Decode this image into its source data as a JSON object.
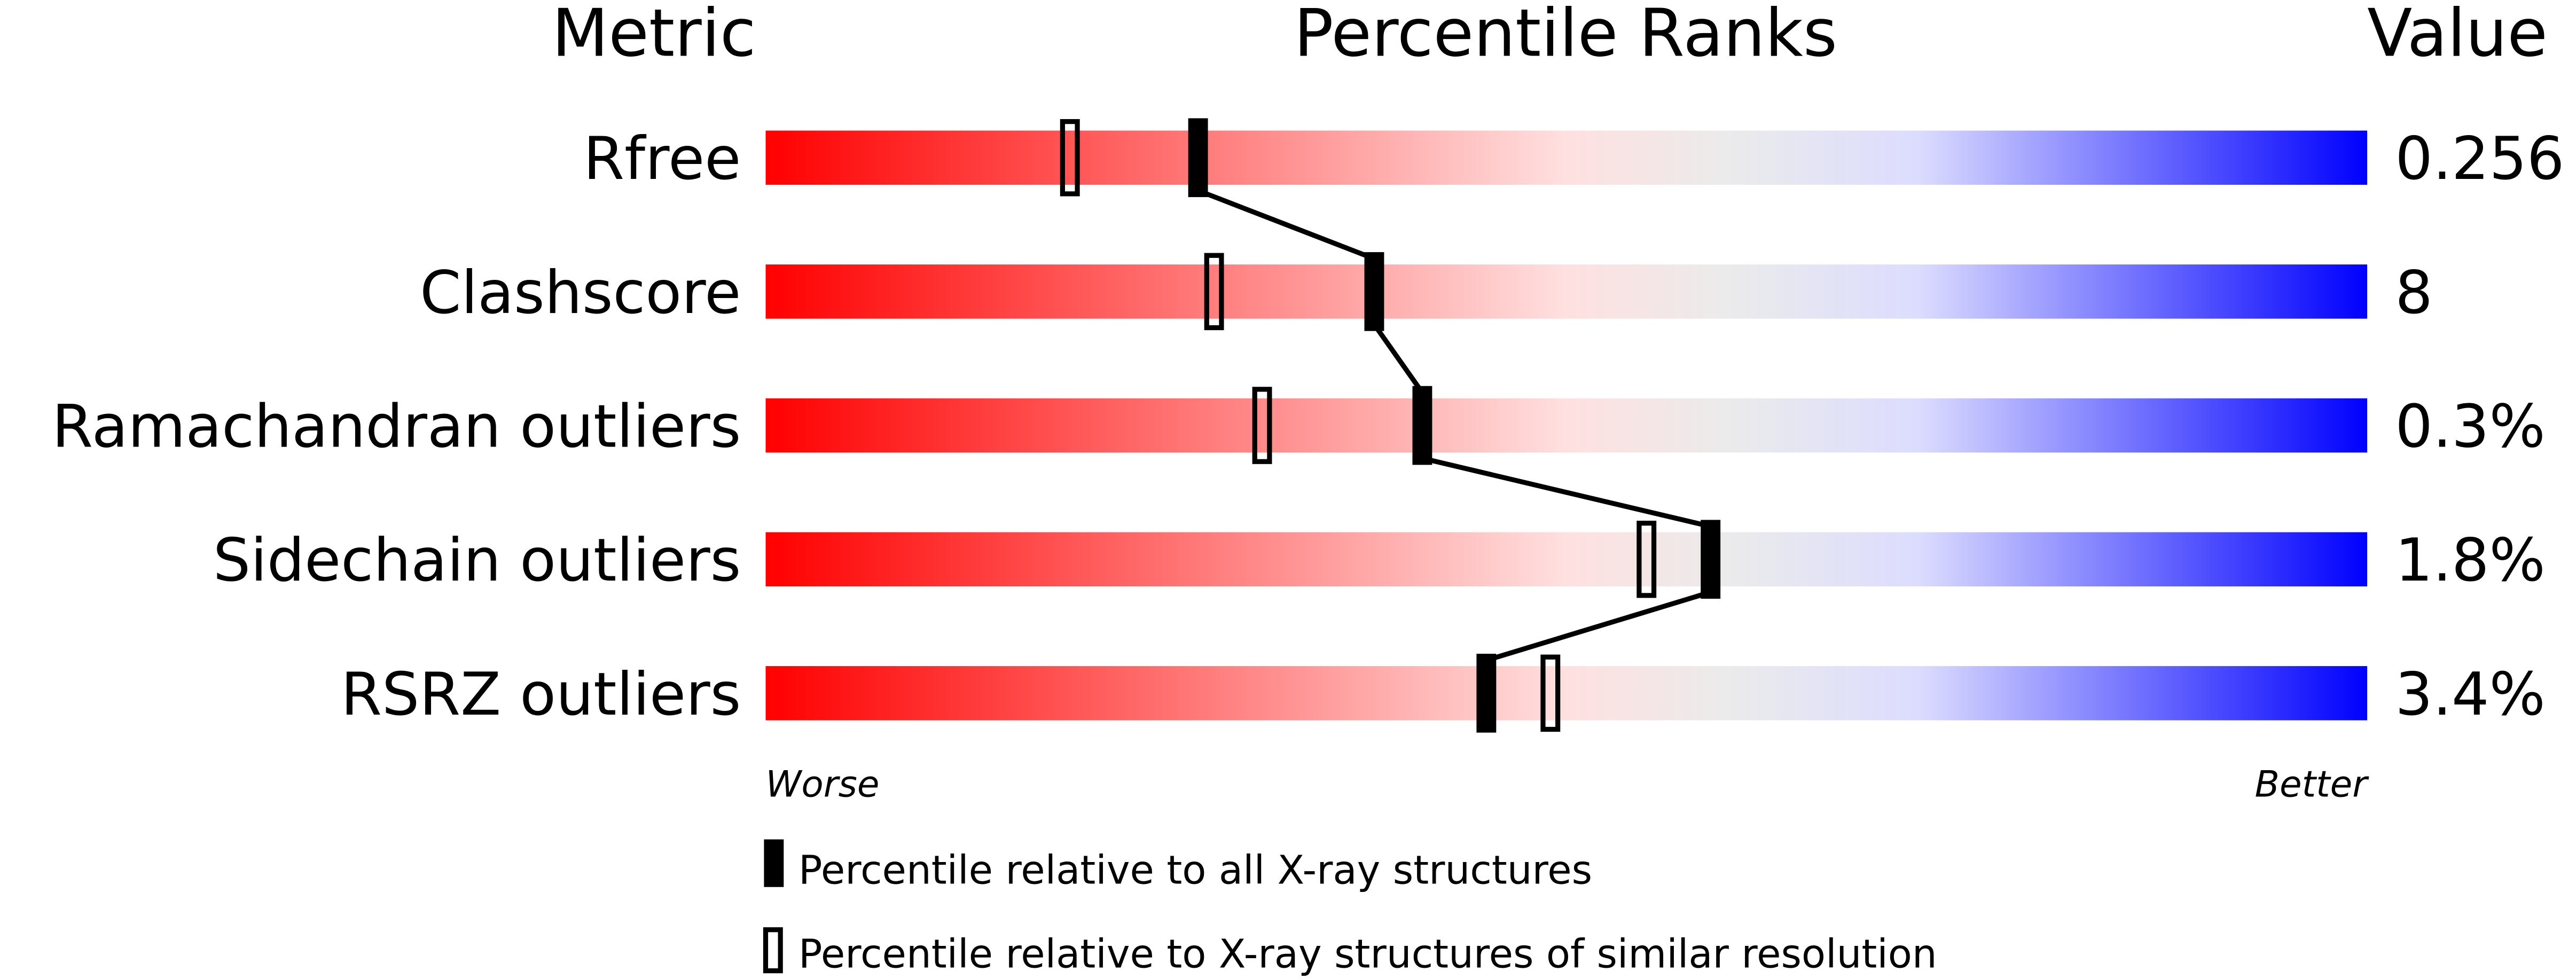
{
  "chart_data": {
    "type": "percentile-slider",
    "headers": {
      "metric": "Metric",
      "ranks": "Percentile Ranks",
      "value": "Value"
    },
    "xlim": [
      0,
      100
    ],
    "axis_labels": {
      "left": "Worse",
      "right": "Better"
    },
    "gradient_colors": [
      "#ff0000",
      "#ffe0e0",
      "#ebebeb",
      "#dcdcff",
      "#0000ff"
    ],
    "metrics": [
      {
        "name": "Rfree",
        "value": "0.256",
        "percentile_all": 27,
        "percentile_similar": 19
      },
      {
        "name": "Clashscore",
        "value": "8",
        "percentile_all": 38,
        "percentile_similar": 28
      },
      {
        "name": "Ramachandran outliers",
        "value": "0.3%",
        "percentile_all": 41,
        "percentile_similar": 31
      },
      {
        "name": "Sidechain outliers",
        "value": "1.8%",
        "percentile_all": 59,
        "percentile_similar": 55
      },
      {
        "name": "RSRZ outliers",
        "value": "3.4%",
        "percentile_all": 45,
        "percentile_similar": 49
      }
    ],
    "legend": [
      {
        "marker": "filled",
        "label": "Percentile relative to all X-ray structures"
      },
      {
        "marker": "open",
        "label": "Percentile relative to X-ray structures of similar resolution"
      }
    ]
  }
}
